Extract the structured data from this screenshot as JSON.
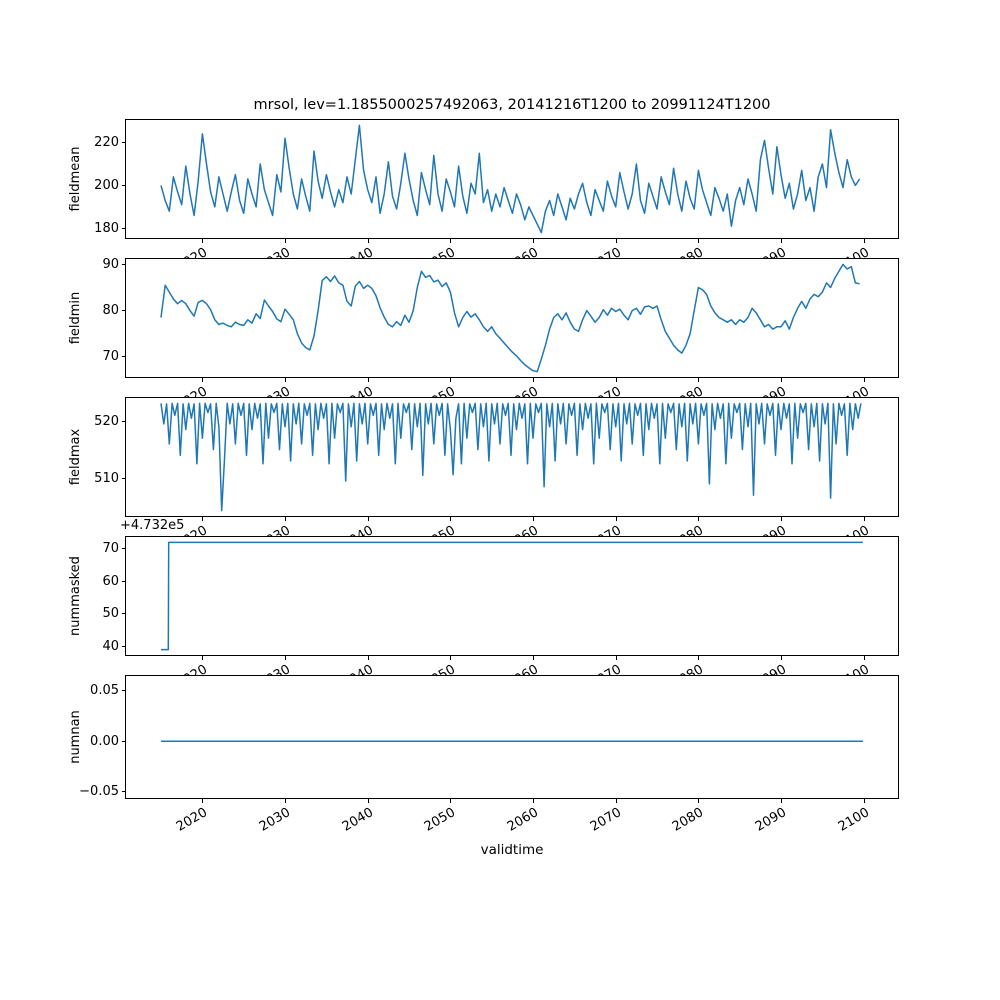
{
  "figure": {
    "title": "mrsol, lev=1.1855000257492063, 20141216T1200 to 20991124T1200",
    "xlabel": "validtime",
    "line_color": "#1f77b4",
    "axis_color": "#000000",
    "background": "#ffffff"
  },
  "chart_data": {
    "type": "line",
    "title": "mrsol, lev=1.1855000257492063, 20141216T1200 to 20991124T1200",
    "xlabel": "validtime",
    "grid": false,
    "legend": "none",
    "xlim": [
      2010.76,
      2104.15
    ],
    "xticks": [
      2020,
      2030,
      2040,
      2050,
      2060,
      2070,
      2080,
      2090,
      2100
    ],
    "panels": [
      {
        "name": "fieldmean",
        "ylabel": "fieldmean",
        "yticks": [
          {
            "v": 180,
            "label": "180"
          },
          {
            "v": 200,
            "label": "200"
          },
          {
            "v": 220,
            "label": "220"
          }
        ],
        "ylim": [
          175.5,
          230.5
        ],
        "x_start": 2015.0,
        "x_step": 0.5,
        "values": [
          200,
          193,
          188,
          204,
          197,
          191,
          209,
          196,
          186,
          202,
          224,
          210,
          197,
          190,
          204,
          196,
          188,
          197,
          205,
          193,
          187,
          203,
          196,
          190,
          210,
          198,
          192,
          186,
          205,
          197,
          222,
          208,
          196,
          189,
          203,
          195,
          188,
          216,
          202,
          194,
          205,
          197,
          190,
          198,
          192,
          204,
          196,
          212,
          228,
          207,
          198,
          192,
          204,
          187,
          196,
          211,
          195,
          189,
          201,
          215,
          203,
          193,
          186,
          206,
          198,
          191,
          214,
          196,
          188,
          203,
          197,
          190,
          209,
          195,
          187,
          201,
          196,
          215,
          192,
          198,
          188,
          196,
          190,
          199,
          193,
          187,
          196,
          191,
          184,
          190,
          186,
          182,
          178,
          188,
          193,
          186,
          196,
          190,
          184,
          194,
          189,
          196,
          201,
          192,
          186,
          198,
          193,
          188,
          202,
          195,
          190,
          206,
          197,
          189,
          196,
          210,
          193,
          187,
          201,
          195,
          189,
          204,
          197,
          191,
          208,
          196,
          188,
          202,
          194,
          189,
          207,
          198,
          192,
          186,
          199,
          194,
          188,
          196,
          181,
          193,
          199,
          191,
          203,
          196,
          188,
          212,
          221,
          208,
          196,
          218,
          205,
          194,
          201,
          189,
          196,
          207,
          193,
          199,
          188,
          204,
          210,
          199,
          226,
          215,
          206,
          199,
          212,
          204,
          200,
          203
        ]
      },
      {
        "name": "fieldmin",
        "ylabel": "fieldmin",
        "yticks": [
          {
            "v": 70,
            "label": "70"
          },
          {
            "v": 80,
            "label": "80"
          },
          {
            "v": 90,
            "label": "90"
          }
        ],
        "ylim": [
          65.64,
          91.16
        ],
        "x_start": 2015.0,
        "x_step": 0.5,
        "values": [
          78.5,
          85.5,
          84.0,
          82.5,
          81.5,
          82.2,
          81.5,
          80.0,
          78.8,
          81.8,
          82.2,
          81.5,
          80.2,
          78.0,
          77.0,
          77.3,
          76.8,
          76.5,
          77.5,
          77.0,
          76.8,
          78.0,
          77.3,
          79.3,
          78.3,
          82.3,
          81.0,
          79.8,
          78.2,
          77.6,
          80.3,
          79.2,
          78.0,
          75.0,
          73.0,
          72.0,
          71.5,
          74.5,
          80.0,
          86.5,
          87.3,
          86.3,
          87.5,
          86.0,
          85.5,
          82.0,
          81.0,
          85.3,
          86.3,
          84.8,
          85.5,
          84.8,
          83.2,
          80.6,
          78.6,
          77.0,
          76.5,
          77.6,
          76.8,
          79.0,
          77.5,
          80.0,
          85.0,
          88.5,
          87.2,
          87.6,
          86.2,
          86.6,
          85.2,
          86.0,
          84.0,
          79.5,
          76.5,
          78.5,
          79.8,
          78.6,
          79.3,
          78.0,
          76.5,
          75.5,
          76.5,
          75.0,
          74.0,
          73.0,
          72.0,
          71.0,
          70.2,
          69.2,
          68.3,
          67.6,
          67.0,
          66.8,
          69.5,
          72.5,
          76.0,
          78.5,
          79.3,
          78.0,
          79.5,
          77.5,
          76.0,
          75.5,
          78.0,
          80.0,
          78.8,
          77.5,
          78.5,
          80.2,
          79.0,
          80.5,
          79.8,
          80.3,
          79.0,
          78.0,
          80.0,
          80.5,
          79.2,
          80.8,
          81.0,
          80.5,
          81.0,
          78.0,
          75.5,
          74.0,
          72.5,
          71.5,
          70.8,
          72.5,
          75.0,
          80.0,
          85.0,
          84.5,
          83.5,
          81.0,
          79.5,
          78.5,
          78.0,
          77.5,
          78.0,
          77.0,
          78.0,
          77.5,
          78.5,
          80.5,
          79.5,
          78.0,
          76.5,
          77.0,
          76.0,
          76.5,
          76.5,
          77.8,
          76.0,
          78.5,
          80.5,
          82.0,
          80.5,
          82.5,
          83.5,
          83.0,
          84.0,
          86.0,
          85.0,
          87.0,
          88.5,
          90.0,
          89.0,
          89.5,
          86.0,
          85.8
        ]
      },
      {
        "name": "fieldmax",
        "ylabel": "fieldmax",
        "yticks": [
          {
            "v": 510,
            "label": "510"
          },
          {
            "v": 520,
            "label": "520"
          }
        ],
        "ylim": [
          503.36,
          524.04
        ],
        "x_start": 2015.0,
        "x_step": 0.33333,
        "values": [
          523.1,
          519.5,
          523.0,
          516.0,
          523.1,
          521.0,
          523.1,
          514.0,
          523.0,
          518.5,
          523.1,
          520.5,
          523.0,
          512.5,
          523.1,
          517.0,
          523.1,
          521.5,
          523.0,
          515.0,
          523.1,
          519.0,
          504.3,
          513.0,
          523.1,
          519.5,
          523.0,
          516.0,
          523.1,
          521.0,
          523.1,
          514.0,
          523.0,
          518.5,
          523.1,
          520.5,
          523.0,
          512.5,
          523.1,
          517.0,
          523.0,
          521.5,
          523.1,
          515.0,
          523.0,
          519.0,
          523.1,
          513.0,
          523.0,
          519.5,
          523.1,
          516.0,
          523.0,
          521.0,
          523.1,
          514.0,
          523.0,
          518.5,
          523.1,
          520.5,
          523.0,
          512.5,
          523.1,
          517.0,
          523.0,
          521.5,
          523.1,
          509.5,
          523.0,
          519.0,
          523.1,
          513.0,
          523.0,
          519.5,
          523.1,
          516.0,
          523.0,
          521.0,
          523.1,
          514.0,
          523.0,
          518.5,
          523.1,
          520.5,
          523.0,
          512.5,
          523.1,
          517.0,
          523.0,
          521.5,
          523.1,
          515.0,
          523.0,
          519.0,
          523.1,
          510.5,
          523.0,
          519.5,
          523.1,
          516.0,
          523.0,
          521.0,
          523.1,
          514.0,
          523.0,
          518.5,
          510.6,
          520.5,
          523.0,
          512.5,
          523.1,
          517.0,
          523.0,
          521.5,
          523.1,
          515.0,
          523.0,
          519.0,
          523.1,
          513.0,
          523.0,
          519.5,
          523.1,
          516.0,
          523.0,
          521.0,
          523.1,
          514.0,
          523.0,
          518.5,
          523.1,
          520.5,
          523.0,
          512.5,
          523.1,
          517.0,
          523.0,
          521.5,
          523.1,
          508.5,
          523.0,
          519.0,
          523.1,
          513.0,
          523.0,
          519.5,
          523.1,
          516.0,
          523.0,
          521.0,
          523.1,
          514.0,
          523.0,
          518.5,
          523.1,
          520.5,
          523.0,
          512.5,
          523.1,
          517.0,
          523.0,
          521.5,
          523.1,
          515.0,
          523.0,
          519.0,
          523.1,
          513.0,
          523.0,
          519.5,
          523.1,
          516.0,
          523.0,
          521.0,
          523.1,
          514.0,
          523.0,
          518.5,
          523.1,
          520.5,
          523.0,
          512.5,
          523.1,
          517.0,
          523.0,
          521.5,
          523.1,
          515.0,
          523.0,
          519.0,
          523.1,
          513.0,
          523.0,
          519.5,
          523.1,
          516.0,
          523.0,
          521.0,
          523.1,
          509.0,
          523.0,
          518.5,
          523.1,
          520.5,
          523.0,
          512.5,
          523.1,
          517.0,
          523.0,
          521.5,
          523.1,
          515.0,
          523.0,
          519.0,
          523.1,
          507.0,
          523.0,
          519.5,
          523.1,
          516.0,
          523.0,
          521.0,
          523.1,
          514.0,
          523.0,
          518.5,
          523.1,
          520.5,
          523.0,
          512.5,
          523.1,
          517.0,
          523.0,
          521.5,
          523.1,
          515.0,
          523.0,
          519.0,
          523.1,
          513.0,
          523.0,
          519.5,
          523.1,
          506.5,
          523.0,
          516.0,
          523.1,
          521.0,
          523.0,
          514.0,
          523.1,
          518.5,
          523.0,
          520.5,
          523.1
        ]
      },
      {
        "name": "nummasked",
        "ylabel": "nummasked",
        "yticks": [
          {
            "v": 40,
            "label": "40"
          },
          {
            "v": 50,
            "label": "50"
          },
          {
            "v": 60,
            "label": "60"
          },
          {
            "v": 70,
            "label": "70"
          }
        ],
        "ylim": [
          37.35,
          73.65
        ],
        "offset_text": "+4.732e5",
        "display_offset": 473200,
        "points": [
          [
            2015.0,
            473239
          ],
          [
            2015.88,
            473239
          ],
          [
            2015.92,
            473272
          ],
          [
            2099.9,
            473272
          ]
        ]
      },
      {
        "name": "numnan",
        "ylabel": "numnan",
        "yticks": [
          {
            "v": -0.05,
            "label": "−0.05"
          },
          {
            "v": 0.0,
            "label": "0.00"
          },
          {
            "v": 0.05,
            "label": "0.05"
          }
        ],
        "ylim": [
          -0.0563,
          0.0647
        ],
        "points": [
          [
            2015.0,
            0.0
          ],
          [
            2099.9,
            0.0
          ]
        ]
      }
    ]
  }
}
